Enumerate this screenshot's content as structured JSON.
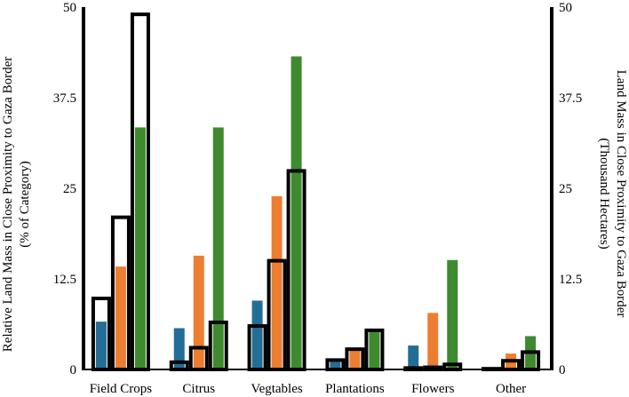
{
  "chart_data": {
    "type": "bar",
    "categories": [
      "Field Crops",
      "Citrus",
      "Vegtables",
      "Plantations",
      "Flowers",
      "Other"
    ],
    "ylim": [
      0,
      50
    ],
    "ylim_right": [
      0,
      50
    ],
    "yticks": [
      "0",
      "12.5",
      "25",
      "37.5",
      "50"
    ],
    "yticks_right": [
      "0",
      "12.5",
      "25",
      "37.5",
      "50"
    ],
    "ylabel": "Relative Land Mass in Close Proximity to Gaza Border",
    "ylabel_sub": "(% of Category)",
    "ylabel_right": "Land Mass in Close Proximity to Gaza Border",
    "ylabel_right_sub": "(Thousand  Hectares)",
    "xlabel": "",
    "series_filled": [
      {
        "name": "series-1",
        "color": "#236e96",
        "values": [
          6.6,
          5.7,
          9.5,
          1.2,
          3.3,
          0.3
        ]
      },
      {
        "name": "series-2",
        "color": "#ed7d31",
        "values": [
          14.2,
          15.7,
          23.9,
          2.7,
          7.8,
          2.2
        ]
      },
      {
        "name": "series-3",
        "color": "#3f8a2f",
        "values": [
          33.4,
          33.4,
          43.2,
          5.6,
          15.1,
          4.6
        ]
      }
    ],
    "series_outlined": [
      {
        "name": "series-1-thousand-hectares",
        "values": [
          9.8,
          1.0,
          6.0,
          1.3,
          0.2,
          0.1
        ]
      },
      {
        "name": "series-2-thousand-hectares",
        "values": [
          21.0,
          3.0,
          15.0,
          2.8,
          0.3,
          1.2
        ]
      },
      {
        "name": "series-3-thousand-hectares",
        "values": [
          49.0,
          6.5,
          27.4,
          5.4,
          0.7,
          2.4
        ]
      }
    ],
    "outline_color": "#000000"
  }
}
